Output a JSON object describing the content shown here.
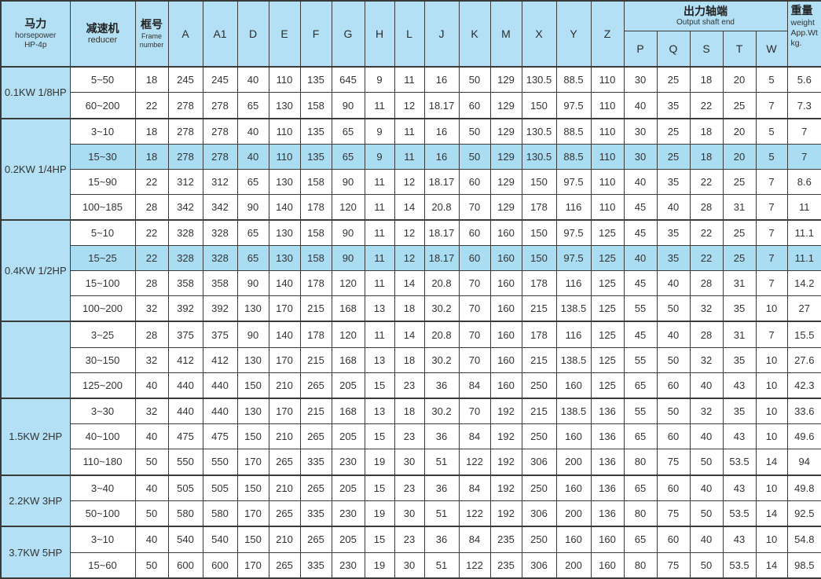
{
  "colors": {
    "header_blue": "#b3e0f4",
    "highlight_blue": "#aadcf2",
    "border": "#3a3a3a",
    "text": "#333333"
  },
  "table": {
    "header": {
      "horsepower": {
        "zh": "马力",
        "en1": "horsepower",
        "en2": "HP-4p"
      },
      "reducer": {
        "zh": "减速机",
        "en1": "reducer"
      },
      "frame": {
        "zh": "框号",
        "en1": "Frame",
        "en2": "number"
      },
      "dim_columns": [
        "A",
        "A1",
        "D",
        "E",
        "F",
        "G",
        "H",
        "L",
        "J",
        "K",
        "M",
        "X",
        "Y",
        "Z"
      ],
      "output_shaft": {
        "zh": "出力轴端",
        "en1": "Output shaft end",
        "sub_columns": [
          "P",
          "Q",
          "S",
          "T",
          "W"
        ]
      },
      "weight": {
        "zh": "重量",
        "lines": [
          "weight",
          "App.Wt",
          "kg."
        ]
      }
    },
    "groups": [
      {
        "label": "0.1KW 1/8HP",
        "rows": [
          {
            "reducer": "5~50",
            "highlight": false,
            "values": [
              "18",
              "245",
              "245",
              "40",
              "110",
              "135",
              "645",
              "9",
              "11",
              "16",
              "50",
              "129",
              "130.5",
              "88.5",
              "110",
              "30",
              "25",
              "18",
              "20",
              "5",
              "5.6"
            ]
          },
          {
            "reducer": "60~200",
            "highlight": false,
            "values": [
              "22",
              "278",
              "278",
              "65",
              "130",
              "158",
              "90",
              "11",
              "12",
              "18.17",
              "60",
              "129",
              "150",
              "97.5",
              "110",
              "40",
              "35",
              "22",
              "25",
              "7",
              "7.3"
            ]
          }
        ]
      },
      {
        "label": "0.2KW 1/4HP",
        "rows": [
          {
            "reducer": "3~10",
            "highlight": false,
            "values": [
              "18",
              "278",
              "278",
              "40",
              "110",
              "135",
              "65",
              "9",
              "11",
              "16",
              "50",
              "129",
              "130.5",
              "88.5",
              "110",
              "30",
              "25",
              "18",
              "20",
              "5",
              "7"
            ]
          },
          {
            "reducer": "15~30",
            "highlight": true,
            "values": [
              "18",
              "278",
              "278",
              "40",
              "110",
              "135",
              "65",
              "9",
              "11",
              "16",
              "50",
              "129",
              "130.5",
              "88.5",
              "110",
              "30",
              "25",
              "18",
              "20",
              "5",
              "7"
            ]
          },
          {
            "reducer": "15~90",
            "highlight": false,
            "values": [
              "22",
              "312",
              "312",
              "65",
              "130",
              "158",
              "90",
              "11",
              "12",
              "18.17",
              "60",
              "129",
              "150",
              "97.5",
              "110",
              "40",
              "35",
              "22",
              "25",
              "7",
              "8.6"
            ]
          },
          {
            "reducer": "100~185",
            "highlight": false,
            "values": [
              "28",
              "342",
              "342",
              "90",
              "140",
              "178",
              "120",
              "11",
              "14",
              "20.8",
              "70",
              "129",
              "178",
              "116",
              "110",
              "45",
              "40",
              "28",
              "31",
              "7",
              "11"
            ]
          }
        ]
      },
      {
        "label": "0.4KW 1/2HP",
        "rows": [
          {
            "reducer": "5~10",
            "highlight": false,
            "values": [
              "22",
              "328",
              "328",
              "65",
              "130",
              "158",
              "90",
              "11",
              "12",
              "18.17",
              "60",
              "160",
              "150",
              "97.5",
              "125",
              "45",
              "35",
              "22",
              "25",
              "7",
              "11.1"
            ]
          },
          {
            "reducer": "15~25",
            "highlight": true,
            "values": [
              "22",
              "328",
              "328",
              "65",
              "130",
              "158",
              "90",
              "11",
              "12",
              "18.17",
              "60",
              "160",
              "150",
              "97.5",
              "125",
              "40",
              "35",
              "22",
              "25",
              "7",
              "11.1"
            ]
          },
          {
            "reducer": "15~100",
            "highlight": false,
            "values": [
              "28",
              "358",
              "358",
              "90",
              "140",
              "178",
              "120",
              "11",
              "14",
              "20.8",
              "70",
              "160",
              "178",
              "116",
              "125",
              "45",
              "40",
              "28",
              "31",
              "7",
              "14.2"
            ]
          },
          {
            "reducer": "100~200",
            "highlight": false,
            "values": [
              "32",
              "392",
              "392",
              "130",
              "170",
              "215",
              "168",
              "13",
              "18",
              "30.2",
              "70",
              "160",
              "215",
              "138.5",
              "125",
              "55",
              "50",
              "32",
              "35",
              "10",
              "27"
            ]
          }
        ]
      },
      {
        "label": "",
        "rows": [
          {
            "reducer": "3~25",
            "highlight": false,
            "values": [
              "28",
              "375",
              "375",
              "90",
              "140",
              "178",
              "120",
              "11",
              "14",
              "20.8",
              "70",
              "160",
              "178",
              "116",
              "125",
              "45",
              "40",
              "28",
              "31",
              "7",
              "15.5"
            ]
          },
          {
            "reducer": "30~150",
            "highlight": false,
            "values": [
              "32",
              "412",
              "412",
              "130",
              "170",
              "215",
              "168",
              "13",
              "18",
              "30.2",
              "70",
              "160",
              "215",
              "138.5",
              "125",
              "55",
              "50",
              "32",
              "35",
              "10",
              "27.6"
            ]
          },
          {
            "reducer": "125~200",
            "highlight": false,
            "values": [
              "40",
              "440",
              "440",
              "150",
              "210",
              "265",
              "205",
              "15",
              "23",
              "36",
              "84",
              "160",
              "250",
              "160",
              "125",
              "65",
              "60",
              "40",
              "43",
              "10",
              "42.3"
            ]
          }
        ]
      },
      {
        "label": "1.5KW 2HP",
        "rows": [
          {
            "reducer": "3~30",
            "highlight": false,
            "values": [
              "32",
              "440",
              "440",
              "130",
              "170",
              "215",
              "168",
              "13",
              "18",
              "30.2",
              "70",
              "192",
              "215",
              "138.5",
              "136",
              "55",
              "50",
              "32",
              "35",
              "10",
              "33.6"
            ]
          },
          {
            "reducer": "40~100",
            "highlight": false,
            "values": [
              "40",
              "475",
              "475",
              "150",
              "210",
              "265",
              "205",
              "15",
              "23",
              "36",
              "84",
              "192",
              "250",
              "160",
              "136",
              "65",
              "60",
              "40",
              "43",
              "10",
              "49.6"
            ]
          },
          {
            "reducer": "110~180",
            "highlight": false,
            "values": [
              "50",
              "550",
              "550",
              "170",
              "265",
              "335",
              "230",
              "19",
              "30",
              "51",
              "122",
              "192",
              "306",
              "200",
              "136",
              "80",
              "75",
              "50",
              "53.5",
              "14",
              "94"
            ]
          }
        ]
      },
      {
        "label": "2.2KW 3HP",
        "rows": [
          {
            "reducer": "3~40",
            "highlight": false,
            "values": [
              "40",
              "505",
              "505",
              "150",
              "210",
              "265",
              "205",
              "15",
              "23",
              "36",
              "84",
              "192",
              "250",
              "160",
              "136",
              "65",
              "60",
              "40",
              "43",
              "10",
              "49.8"
            ]
          },
          {
            "reducer": "50~100",
            "highlight": false,
            "values": [
              "50",
              "580",
              "580",
              "170",
              "265",
              "335",
              "230",
              "19",
              "30",
              "51",
              "122",
              "192",
              "306",
              "200",
              "136",
              "80",
              "75",
              "50",
              "53.5",
              "14",
              "92.5"
            ]
          }
        ]
      },
      {
        "label": "3.7KW 5HP",
        "rows": [
          {
            "reducer": "3~10",
            "highlight": false,
            "values": [
              "40",
              "540",
              "540",
              "150",
              "210",
              "265",
              "205",
              "15",
              "23",
              "36",
              "84",
              "235",
              "250",
              "160",
              "160",
              "65",
              "60",
              "40",
              "43",
              "10",
              "54.8"
            ]
          },
          {
            "reducer": "15~60",
            "highlight": false,
            "values": [
              "50",
              "600",
              "600",
              "170",
              "265",
              "335",
              "230",
              "19",
              "30",
              "51",
              "122",
              "235",
              "306",
              "200",
              "160",
              "80",
              "75",
              "50",
              "53.5",
              "14",
              "98.5"
            ]
          }
        ]
      }
    ]
  }
}
